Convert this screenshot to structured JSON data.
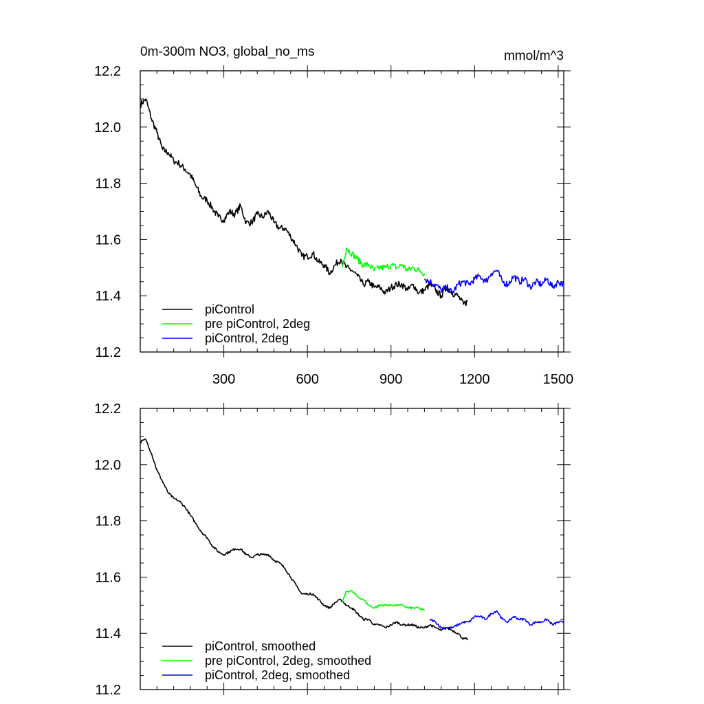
{
  "chart_data": [
    {
      "type": "line",
      "title": "0m-300m NO3, global_no_ms",
      "units": "mmol/m^3",
      "xlim": [
        0,
        1520
      ],
      "ylim": [
        11.2,
        12.2
      ],
      "x_ticks": [
        300,
        600,
        900,
        1200,
        1500
      ],
      "x_tick_labels": [
        "300",
        "600",
        "900",
        "1200",
        "1500"
      ],
      "y_ticks": [
        11.2,
        11.4,
        11.6,
        11.8,
        12.0,
        12.2
      ],
      "y_tick_labels": [
        "11.2",
        "11.4",
        "11.6",
        "11.8",
        "12.0",
        "12.2"
      ],
      "grid": false,
      "legend_position": "bottom-left",
      "series": [
        {
          "name": "piControl",
          "color": "#000000",
          "x": [
            0,
            20,
            40,
            60,
            80,
            100,
            120,
            140,
            160,
            180,
            200,
            220,
            240,
            260,
            280,
            300,
            320,
            340,
            360,
            380,
            400,
            420,
            440,
            460,
            480,
            500,
            520,
            540,
            560,
            580,
            600,
            620,
            640,
            660,
            680,
            700,
            720,
            740,
            760,
            780,
            800,
            820,
            840,
            860,
            880,
            900,
            920,
            940,
            960,
            980,
            1000,
            1020,
            1040,
            1060,
            1080,
            1100,
            1120,
            1140,
            1160,
            1175
          ],
          "y": [
            12.08,
            12.1,
            12.03,
            11.98,
            11.92,
            11.91,
            11.88,
            11.87,
            11.85,
            11.83,
            11.79,
            11.75,
            11.74,
            11.71,
            11.68,
            11.67,
            11.7,
            11.69,
            11.72,
            11.66,
            11.66,
            11.69,
            11.68,
            11.7,
            11.66,
            11.64,
            11.64,
            11.61,
            11.58,
            11.54,
            11.54,
            11.55,
            11.52,
            11.51,
            11.48,
            11.51,
            11.53,
            11.5,
            11.49,
            11.47,
            11.44,
            11.45,
            11.43,
            11.43,
            11.41,
            11.43,
            11.44,
            11.44,
            11.42,
            11.44,
            11.41,
            11.42,
            11.44,
            11.42,
            11.4,
            11.43,
            11.41,
            11.4,
            11.37,
            11.38
          ]
        },
        {
          "name": "pre piControl, 2deg",
          "color": "#00ff00",
          "x": [
            725,
            740,
            760,
            780,
            800,
            820,
            840,
            860,
            880,
            900,
            920,
            940,
            960,
            980,
            1000,
            1020
          ],
          "y": [
            11.5,
            11.57,
            11.55,
            11.53,
            11.51,
            11.51,
            11.49,
            11.5,
            11.5,
            11.51,
            11.5,
            11.51,
            11.49,
            11.5,
            11.49,
            11.48
          ]
        },
        {
          "name": "piControl, 2deg",
          "color": "#0000ff",
          "x": [
            1020,
            1040,
            1060,
            1080,
            1100,
            1120,
            1140,
            1160,
            1180,
            1200,
            1220,
            1240,
            1260,
            1280,
            1300,
            1320,
            1340,
            1360,
            1380,
            1400,
            1420,
            1440,
            1460,
            1480,
            1500,
            1520
          ],
          "y": [
            11.46,
            11.45,
            11.44,
            11.42,
            11.43,
            11.41,
            11.44,
            11.45,
            11.44,
            11.46,
            11.47,
            11.45,
            11.48,
            11.49,
            11.45,
            11.44,
            11.47,
            11.45,
            11.46,
            11.43,
            11.45,
            11.44,
            11.46,
            11.43,
            11.45,
            11.44
          ]
        }
      ]
    },
    {
      "type": "line",
      "xlim": [
        0,
        1520
      ],
      "ylim": [
        11.2,
        12.2
      ],
      "x_ticks": [
        300,
        600,
        900,
        1200,
        1500
      ],
      "y_ticks": [
        11.2,
        11.4,
        11.6,
        11.8,
        12.0,
        12.2
      ],
      "y_tick_labels": [
        "11.2",
        "11.4",
        "11.6",
        "11.8",
        "12.0",
        "12.2"
      ],
      "grid": false,
      "legend_position": "bottom-left",
      "series": [
        {
          "name": "piControl, smoothed",
          "color": "#000000",
          "x": [
            0,
            20,
            40,
            60,
            80,
            100,
            120,
            140,
            160,
            180,
            200,
            220,
            240,
            260,
            280,
            300,
            320,
            340,
            360,
            380,
            400,
            420,
            440,
            460,
            480,
            500,
            520,
            540,
            560,
            580,
            600,
            620,
            640,
            660,
            680,
            700,
            720,
            740,
            760,
            780,
            800,
            820,
            840,
            860,
            880,
            900,
            920,
            940,
            960,
            980,
            1000,
            1020,
            1040,
            1060,
            1080,
            1100,
            1120,
            1140,
            1160,
            1175
          ],
          "y": [
            12.08,
            12.09,
            12.04,
            11.98,
            11.94,
            11.9,
            11.88,
            11.87,
            11.85,
            11.82,
            11.79,
            11.76,
            11.74,
            11.71,
            11.69,
            11.68,
            11.69,
            11.7,
            11.7,
            11.68,
            11.67,
            11.68,
            11.68,
            11.68,
            11.66,
            11.65,
            11.63,
            11.6,
            11.57,
            11.54,
            11.54,
            11.54,
            11.52,
            11.5,
            11.49,
            11.51,
            11.52,
            11.5,
            11.49,
            11.47,
            11.45,
            11.45,
            11.43,
            11.43,
            11.42,
            11.43,
            11.44,
            11.43,
            11.43,
            11.43,
            11.42,
            11.42,
            11.43,
            11.42,
            11.41,
            11.42,
            11.41,
            11.4,
            11.38,
            11.38
          ]
        },
        {
          "name": "pre piControl, 2deg, smoothed",
          "color": "#00ff00",
          "x": [
            725,
            740,
            760,
            780,
            800,
            820,
            840,
            860,
            880,
            900,
            920,
            940,
            960,
            980,
            1000,
            1020
          ],
          "y": [
            11.51,
            11.55,
            11.55,
            11.53,
            11.52,
            11.5,
            11.49,
            11.5,
            11.5,
            11.5,
            11.5,
            11.5,
            11.49,
            11.49,
            11.49,
            11.48
          ]
        },
        {
          "name": "piControl, 2deg, smoothed",
          "color": "#0000ff",
          "x": [
            1040,
            1060,
            1080,
            1100,
            1120,
            1140,
            1160,
            1180,
            1200,
            1220,
            1240,
            1260,
            1280,
            1300,
            1320,
            1340,
            1360,
            1380,
            1400,
            1420,
            1440,
            1460,
            1480,
            1500,
            1520
          ],
          "y": [
            11.45,
            11.44,
            11.42,
            11.42,
            11.42,
            11.43,
            11.44,
            11.44,
            11.46,
            11.46,
            11.45,
            11.47,
            11.48,
            11.45,
            11.44,
            11.46,
            11.45,
            11.45,
            11.43,
            11.44,
            11.44,
            11.45,
            11.43,
            11.44,
            11.44
          ]
        }
      ]
    }
  ]
}
